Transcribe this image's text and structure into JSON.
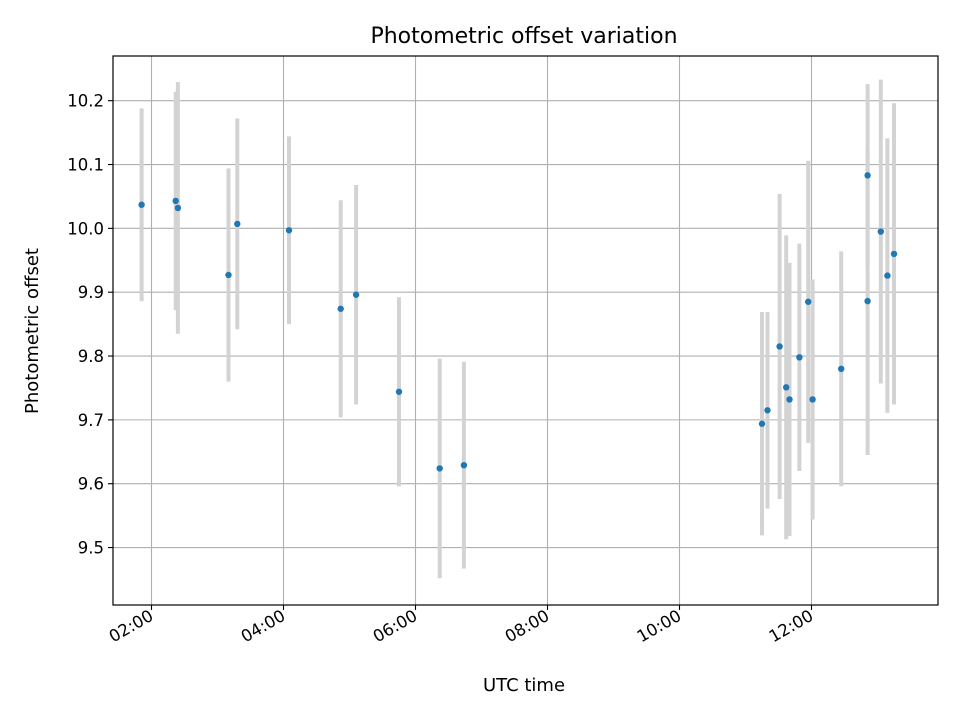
{
  "chart_data": {
    "type": "scatter",
    "title": "Photometric offset variation",
    "xlabel": "UTC time",
    "ylabel": "Photometric offset",
    "xlim": [
      "01:25",
      "13:55"
    ],
    "ylim": [
      9.41,
      10.27
    ],
    "grid": true,
    "x_ticks": [
      "02:00",
      "04:00",
      "06:00",
      "08:00",
      "10:00",
      "12:00"
    ],
    "y_ticks": [
      "9.5",
      "9.6",
      "9.7",
      "9.8",
      "9.9",
      "10.0",
      "10.1",
      "10.2"
    ],
    "colors": {
      "point": "#1f77b4",
      "errorbar": "#d3d3d3",
      "grid": "#b0b0b0"
    },
    "series": [
      {
        "points": [
          {
            "x": "01:51",
            "y": 10.037,
            "err": 0.151
          },
          {
            "x": "02:22",
            "y": 10.043,
            "err": 0.171
          },
          {
            "x": "02:24",
            "y": 10.032,
            "err": 0.197
          },
          {
            "x": "03:10",
            "y": 9.927,
            "err": 0.167
          },
          {
            "x": "03:18",
            "y": 10.007,
            "err": 0.165
          },
          {
            "x": "04:05",
            "y": 9.997,
            "err": 0.147
          },
          {
            "x": "04:52",
            "y": 9.874,
            "err": 0.17
          },
          {
            "x": "05:06",
            "y": 9.896,
            "err": 0.172
          },
          {
            "x": "05:45",
            "y": 9.744,
            "err": 0.148
          },
          {
            "x": "06:22",
            "y": 9.624,
            "err": 0.172
          },
          {
            "x": "06:44",
            "y": 9.629,
            "err": 0.162
          },
          {
            "x": "11:15",
            "y": 9.694,
            "err": 0.175
          },
          {
            "x": "11:20",
            "y": 9.715,
            "err": 0.154
          },
          {
            "x": "11:31",
            "y": 9.815,
            "err": 0.239
          },
          {
            "x": "11:37",
            "y": 9.751,
            "err": 0.238
          },
          {
            "x": "11:40",
            "y": 9.732,
            "err": 0.214
          },
          {
            "x": "11:49",
            "y": 9.798,
            "err": 0.178
          },
          {
            "x": "11:57",
            "y": 9.885,
            "err": 0.221
          },
          {
            "x": "12:01",
            "y": 9.732,
            "err": 0.188
          },
          {
            "x": "12:27",
            "y": 9.78,
            "err": 0.184
          },
          {
            "x": "12:51",
            "y": 10.083,
            "err": 0.143
          },
          {
            "x": "12:51",
            "y": 9.886,
            "err": 0.241
          },
          {
            "x": "13:03",
            "y": 9.995,
            "err": 0.238
          },
          {
            "x": "13:09",
            "y": 9.926,
            "err": 0.215
          },
          {
            "x": "13:15",
            "y": 9.96,
            "err": 0.236
          }
        ]
      }
    ]
  }
}
